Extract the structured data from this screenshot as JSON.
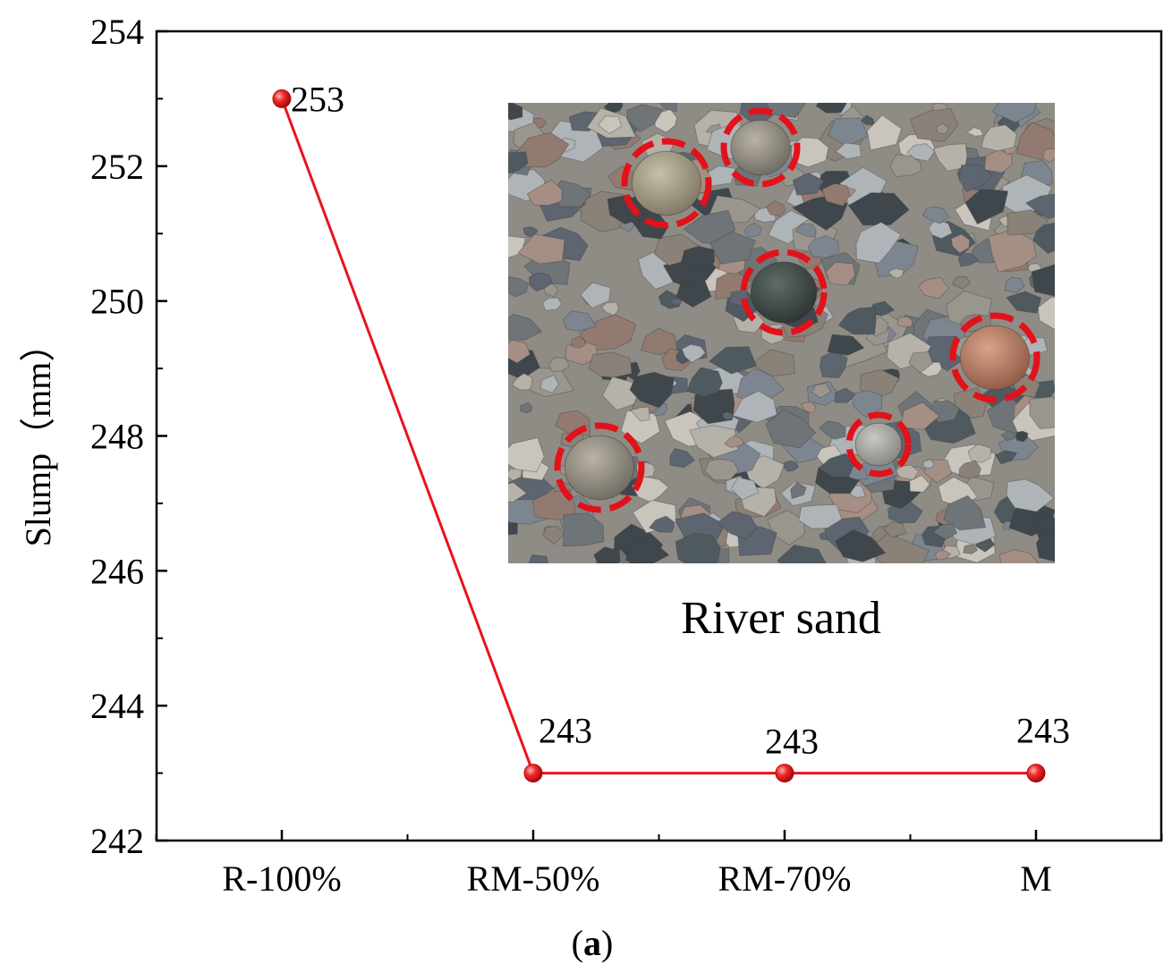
{
  "chart_data": {
    "type": "line",
    "categories": [
      "R-100%",
      "RM-50%",
      "RM-70%",
      "M"
    ],
    "series": [
      {
        "values": [
          253,
          243,
          243,
          243
        ]
      }
    ],
    "data_labels": [
      "253",
      "243",
      "243",
      "243"
    ],
    "ylabel": "Slump（mm）",
    "ylim": [
      242,
      254
    ],
    "yticks": [
      242,
      244,
      246,
      248,
      250,
      252,
      254
    ],
    "ytick_labels": [
      "242",
      "244",
      "246",
      "248",
      "250",
      "252",
      "254"
    ],
    "grid": false,
    "line_color": "#e8141b",
    "marker_color": "#e8141b",
    "panel_label": "(a)",
    "panel_label_letter": "a"
  },
  "inset": {
    "caption": "River sand",
    "highlight_color": "#e2111a"
  }
}
